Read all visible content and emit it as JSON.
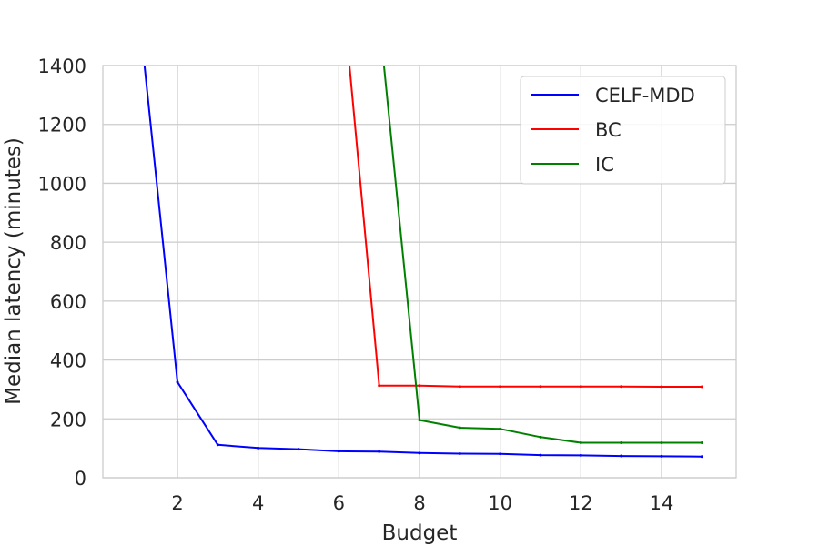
{
  "chart_data": {
    "type": "line",
    "title": "",
    "xlabel": "Budget",
    "ylabel": "Median latency (minutes)",
    "xlim": [
      0.15,
      15.85
    ],
    "ylim": [
      0,
      1400
    ],
    "xticks": [
      2,
      4,
      6,
      8,
      10,
      12,
      14
    ],
    "yticks": [
      0,
      200,
      400,
      600,
      800,
      1000,
      1200,
      1400
    ],
    "grid": true,
    "legend_position": "top-right",
    "series": [
      {
        "name": "CELF-MDD",
        "color": "#0000ff",
        "x": [
          1,
          2,
          3,
          4,
          5,
          6,
          7,
          8,
          9,
          10,
          11,
          12,
          13,
          14,
          15
        ],
        "y": [
          1640,
          325,
          112,
          101,
          97,
          90,
          89,
          84,
          82,
          81,
          77,
          76,
          74,
          73,
          72
        ]
      },
      {
        "name": "BC",
        "color": "#ff0000",
        "x": [
          6,
          7,
          8,
          9,
          10,
          11,
          12,
          13,
          14,
          15
        ],
        "y": [
          1790,
          313,
          313,
          310,
          310,
          310,
          310,
          310,
          309,
          309
        ]
      },
      {
        "name": "IC",
        "color": "#008000",
        "x": [
          7,
          8,
          9,
          10,
          11,
          12,
          13,
          14,
          15
        ],
        "y": [
          1560,
          196,
          170,
          166,
          138,
          119,
          119,
          119,
          119
        ]
      }
    ]
  }
}
